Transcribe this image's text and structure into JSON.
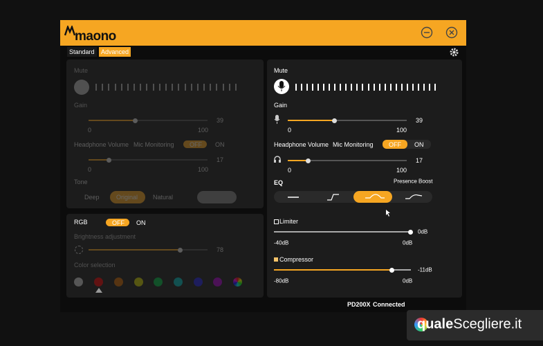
{
  "header": {
    "logo": "maono"
  },
  "tabs": [
    "Standard",
    "Advanced"
  ],
  "left_panel": {
    "mute": "Mute",
    "gain": {
      "label": "Gain",
      "min": 0,
      "max": 100,
      "value": 39
    },
    "headphone": {
      "label": "Headphone Volume",
      "monitoring": "Mic Monitoring",
      "off": "OFF",
      "on": "ON",
      "min": 0,
      "max": 100,
      "value": 17
    },
    "tone": {
      "label": "Tone",
      "options": [
        "Deep",
        "Original",
        "Natural"
      ]
    }
  },
  "rgb_panel": {
    "label": "RGB",
    "off": "OFF",
    "on": "ON",
    "brightness": {
      "label": "Brightness adjustment",
      "value": 78
    },
    "color_selection": "Color selection"
  },
  "right_panel": {
    "mute": "Mute",
    "gain": {
      "label": "Gain",
      "min": 0,
      "max": 100,
      "value": 39
    },
    "headphone": {
      "label": "Headphone Volume",
      "monitoring": "Mic Monitoring",
      "off": "OFF",
      "on": "ON",
      "min": 0,
      "max": 100,
      "value": 17
    },
    "eq": {
      "label": "EQ",
      "presence_boost": "Presence Boost"
    },
    "limiter": {
      "label": "Limiter",
      "value": "0dB",
      "min": "-40dB",
      "max": "0dB"
    },
    "compressor": {
      "label": "Compressor",
      "value": "-11dB",
      "min": "-80dB",
      "max": "0dB"
    }
  },
  "status": {
    "device": "PD200X",
    "state": "Connected"
  },
  "watermark": {
    "bold": "quale",
    "rest": "Scegliere.it"
  }
}
